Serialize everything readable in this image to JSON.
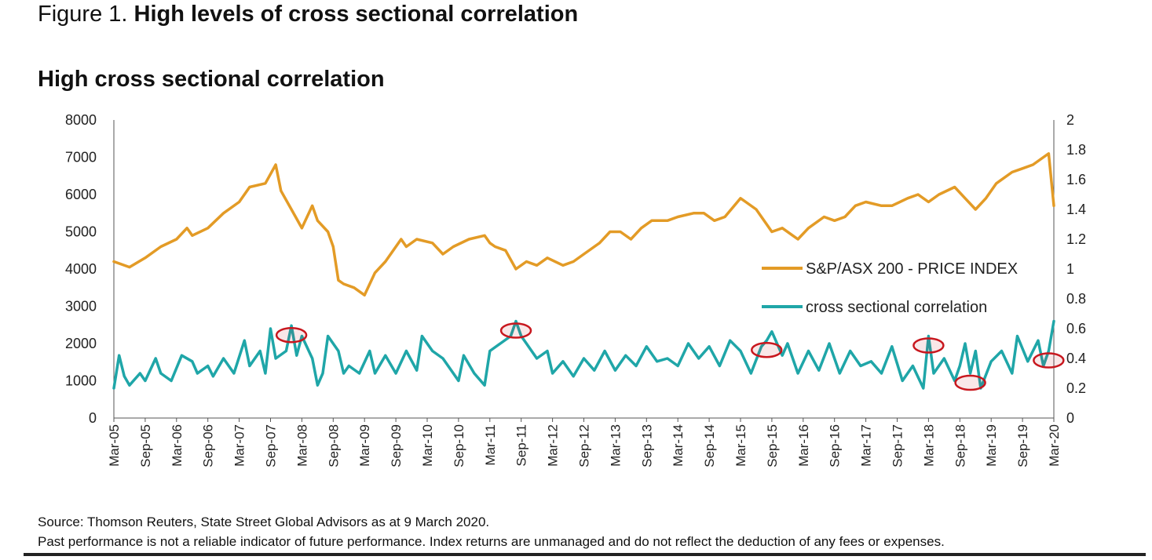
{
  "figure": {
    "prefix": "Figure 1.",
    "title": "High levels of cross sectional correlation"
  },
  "chart_title": "High cross sectional correlation",
  "footer": {
    "source": "Source: Thomson Reuters, State Street Global Advisors as at 9 March 2020.",
    "disclaimer": "Past performance is not a reliable indicator of future performance. Index returns are unmanaged and do not reflect the deduction of any fees or expenses."
  },
  "colors": {
    "index": "#E39B26",
    "correlation": "#1FA6A8",
    "highlight": "#C8171E"
  },
  "chart_data": {
    "type": "line",
    "title": "High cross sectional correlation",
    "x_tick_labels": [
      "Mar-05",
      "Sep-05",
      "Mar-06",
      "Sep-06",
      "Mar-07",
      "Sep-07",
      "Mar-08",
      "Sep-08",
      "Mar-09",
      "Sep-09",
      "Mar-10",
      "Sep-10",
      "Mar-11",
      "Sep-11",
      "Mar-12",
      "Sep-12",
      "Mar-13",
      "Sep-13",
      "Mar-14",
      "Sep-14",
      "Mar-15",
      "Sep-15",
      "Mar-16",
      "Sep-16",
      "Mar-17",
      "Sep-17",
      "Mar-18",
      "Sep-18",
      "Mar-19",
      "Sep-19",
      "Mar-20"
    ],
    "y_left": {
      "min": 0,
      "max": 8000,
      "ticks": [
        "0",
        "1000",
        "2000",
        "3000",
        "4000",
        "5000",
        "6000",
        "7000",
        "8000"
      ]
    },
    "y_right": {
      "min": 0,
      "max": 2,
      "ticks": [
        "0",
        "0.2",
        "0.4",
        "0.6",
        "0.8",
        "1",
        "1.2",
        "1.4",
        "1.6",
        "1.8",
        "2"
      ]
    },
    "legend_position": "right",
    "grid": false,
    "series": [
      {
        "name": "S&P/ASX 200 - PRICE INDEX",
        "axis": "left",
        "x": [
          "Mar-05",
          "Jun-05",
          "Sep-05",
          "Dec-05",
          "Mar-06",
          "May-06",
          "Jun-06",
          "Sep-06",
          "Dec-06",
          "Mar-07",
          "May-07",
          "Aug-07",
          "Oct-07",
          "Nov-07",
          "Jan-08",
          "Mar-08",
          "May-08",
          "Jun-08",
          "Aug-08",
          "Sep-08",
          "Oct-08",
          "Nov-08",
          "Jan-09",
          "Mar-09",
          "May-09",
          "Jul-09",
          "Oct-09",
          "Nov-09",
          "Jan-10",
          "Apr-10",
          "Jun-10",
          "Aug-10",
          "Nov-10",
          "Feb-11",
          "Mar-11",
          "Apr-11",
          "Jun-11",
          "Aug-11",
          "Oct-11",
          "Dec-11",
          "Feb-12",
          "May-12",
          "Jul-12",
          "Sep-12",
          "Dec-12",
          "Feb-13",
          "Apr-13",
          "Jun-13",
          "Aug-13",
          "Oct-13",
          "Jan-14",
          "Mar-14",
          "Jun-14",
          "Aug-14",
          "Oct-14",
          "Dec-14",
          "Mar-15",
          "Apr-15",
          "Jun-15",
          "Aug-15",
          "Sep-15",
          "Nov-15",
          "Jan-16",
          "Feb-16",
          "Apr-16",
          "Jul-16",
          "Sep-16",
          "Nov-16",
          "Jan-17",
          "Mar-17",
          "Jun-17",
          "Aug-17",
          "Nov-17",
          "Jan-18",
          "Mar-18",
          "May-18",
          "Aug-18",
          "Oct-18",
          "Dec-18",
          "Feb-19",
          "Apr-19",
          "Jul-19",
          "Sep-19",
          "Nov-19",
          "Jan-20",
          "Feb-20",
          "Mar-20"
        ],
        "values": [
          4200,
          4050,
          4300,
          4600,
          4800,
          5100,
          4900,
          5100,
          5500,
          5800,
          6200,
          6300,
          6800,
          6100,
          5600,
          5100,
          5700,
          5300,
          5000,
          4600,
          3700,
          3600,
          3500,
          3300,
          3900,
          4200,
          4800,
          4600,
          4800,
          4700,
          4400,
          4600,
          4800,
          4900,
          4700,
          4600,
          4500,
          4000,
          4200,
          4100,
          4300,
          4100,
          4200,
          4400,
          4700,
          5000,
          5000,
          4800,
          5100,
          5300,
          5300,
          5400,
          5500,
          5500,
          5300,
          5400,
          5900,
          5800,
          5600,
          5200,
          5000,
          5100,
          4900,
          4800,
          5100,
          5400,
          5300,
          5400,
          5700,
          5800,
          5700,
          5700,
          5900,
          6000,
          5800,
          6000,
          6200,
          5900,
          5600,
          5900,
          6300,
          6600,
          6700,
          6800,
          7000,
          7100,
          5700
        ]
      },
      {
        "name": "cross sectional correlation",
        "axis": "right",
        "x": [
          "Mar-05",
          "Apr-05",
          "May-05",
          "Jun-05",
          "Aug-05",
          "Sep-05",
          "Nov-05",
          "Dec-05",
          "Feb-06",
          "Apr-06",
          "Jun-06",
          "Jul-06",
          "Sep-06",
          "Oct-06",
          "Dec-06",
          "Feb-07",
          "Apr-07",
          "May-07",
          "Jul-07",
          "Aug-07",
          "Sep-07",
          "Oct-07",
          "Dec-07",
          "Jan-08",
          "Feb-08",
          "Mar-08",
          "May-08",
          "Jun-08",
          "Jul-08",
          "Aug-08",
          "Oct-08",
          "Nov-08",
          "Dec-08",
          "Feb-09",
          "Apr-09",
          "May-09",
          "Jul-09",
          "Sep-09",
          "Nov-09",
          "Jan-10",
          "Feb-10",
          "Apr-10",
          "Jun-10",
          "Aug-10",
          "Sep-10",
          "Oct-10",
          "Dec-10",
          "Feb-11",
          "Mar-11",
          "May-11",
          "Jul-11",
          "Aug-11",
          "Sep-11",
          "Oct-11",
          "Dec-11",
          "Feb-12",
          "Mar-12",
          "May-12",
          "Jul-12",
          "Sep-12",
          "Nov-12",
          "Jan-13",
          "Mar-13",
          "May-13",
          "Jul-13",
          "Sep-13",
          "Nov-13",
          "Jan-14",
          "Mar-14",
          "May-14",
          "Jul-14",
          "Sep-14",
          "Nov-14",
          "Jan-15",
          "Mar-15",
          "May-15",
          "Jul-15",
          "Aug-15",
          "Sep-15",
          "Nov-15",
          "Dec-15",
          "Feb-16",
          "Apr-16",
          "Jun-16",
          "Aug-16",
          "Oct-16",
          "Dec-16",
          "Feb-17",
          "Apr-17",
          "Jun-17",
          "Aug-17",
          "Oct-17",
          "Dec-17",
          "Feb-18",
          "Mar-18",
          "Apr-18",
          "Jun-18",
          "Aug-18",
          "Sep-18",
          "Oct-18",
          "Nov-18",
          "Dec-18",
          "Jan-19",
          "Mar-19",
          "May-19",
          "Jul-19",
          "Aug-19",
          "Oct-19",
          "Dec-19",
          "Jan-20",
          "Feb-20",
          "Mar-20"
        ],
        "values": [
          0.2,
          0.42,
          0.28,
          0.22,
          0.3,
          0.25,
          0.4,
          0.3,
          0.25,
          0.42,
          0.38,
          0.3,
          0.35,
          0.28,
          0.4,
          0.3,
          0.52,
          0.35,
          0.45,
          0.3,
          0.6,
          0.4,
          0.45,
          0.62,
          0.42,
          0.55,
          0.4,
          0.22,
          0.3,
          0.55,
          0.45,
          0.3,
          0.35,
          0.3,
          0.45,
          0.3,
          0.42,
          0.3,
          0.45,
          0.32,
          0.55,
          0.45,
          0.4,
          0.3,
          0.25,
          0.42,
          0.3,
          0.22,
          0.45,
          0.5,
          0.55,
          0.65,
          0.55,
          0.5,
          0.4,
          0.45,
          0.3,
          0.38,
          0.28,
          0.4,
          0.32,
          0.45,
          0.32,
          0.42,
          0.35,
          0.48,
          0.38,
          0.4,
          0.35,
          0.5,
          0.4,
          0.48,
          0.35,
          0.52,
          0.45,
          0.3,
          0.48,
          0.52,
          0.58,
          0.42,
          0.5,
          0.3,
          0.45,
          0.32,
          0.5,
          0.3,
          0.45,
          0.35,
          0.38,
          0.3,
          0.48,
          0.25,
          0.35,
          0.2,
          0.55,
          0.3,
          0.4,
          0.25,
          0.35,
          0.5,
          0.3,
          0.45,
          0.2,
          0.38,
          0.45,
          0.3,
          0.55,
          0.38,
          0.52,
          0.35,
          0.45,
          0.65
        ]
      }
    ],
    "highlighted_periods": [
      "Jan-08",
      "Aug-11",
      "Aug-15",
      "Mar-18",
      "Nov-18",
      "Feb-20"
    ]
  }
}
